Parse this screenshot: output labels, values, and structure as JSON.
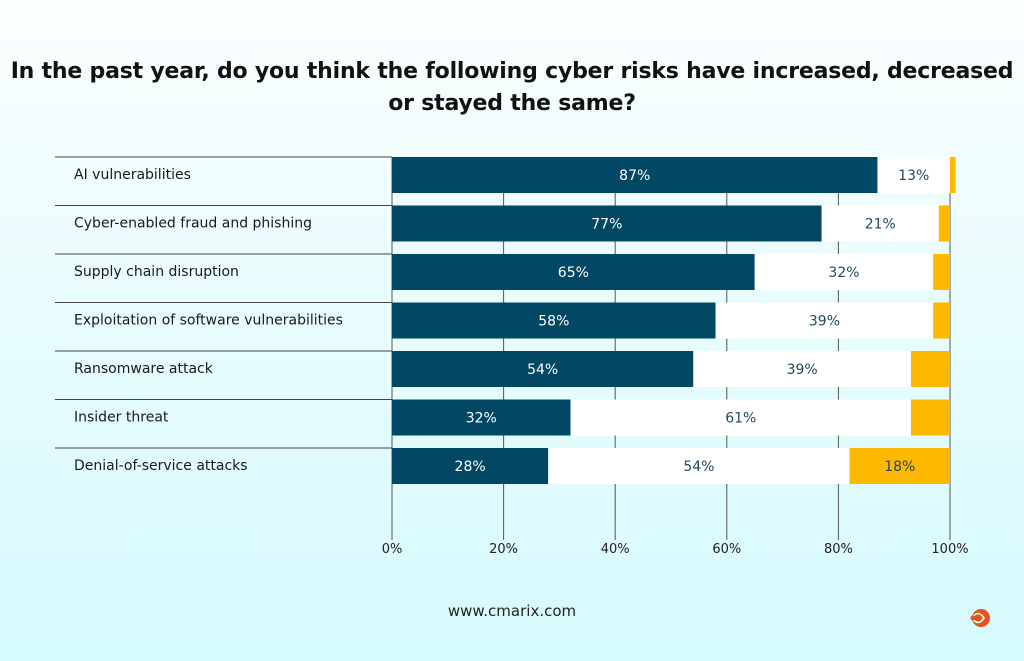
{
  "chart_data": {
    "type": "bar",
    "orientation": "horizontal",
    "stacked": true,
    "title": "In the past year, do you think the following cyber risks have increased, decreased or stayed the same?",
    "categories": [
      "AI vulnerabilities",
      "Cyber-enabled fraud and phishing",
      "Supply chain disruption",
      "Exploitation of software vulnerabilities",
      "Ransomware attack",
      "Insider threat",
      "Denial-of-service attacks"
    ],
    "series": [
      {
        "values": [
          87,
          77,
          65,
          58,
          54,
          32,
          28
        ],
        "color": "#024764",
        "labels": [
          "87%",
          "77%",
          "65%",
          "58%",
          "54%",
          "32%",
          "28%"
        ]
      },
      {
        "values": [
          13,
          21,
          32,
          39,
          39,
          61,
          54
        ],
        "color": "#ffffff",
        "labels": [
          "13%",
          "21%",
          "32%",
          "39%",
          "39%",
          "61%",
          "54%"
        ]
      },
      {
        "values": [
          1,
          2,
          3,
          3,
          7,
          7,
          18
        ],
        "color": "#ffb800",
        "labels": [
          "",
          "",
          "",
          "",
          "",
          "",
          "18%"
        ]
      }
    ],
    "xlim": [
      0,
      100
    ],
    "xticks": [
      "0%",
      "20%",
      "40%",
      "60%",
      "80%",
      "100%"
    ],
    "grid": true,
    "legend": "none"
  },
  "footer": {
    "url": "www.cmarix.com"
  },
  "colors": {
    "logo": "#e0541c"
  }
}
